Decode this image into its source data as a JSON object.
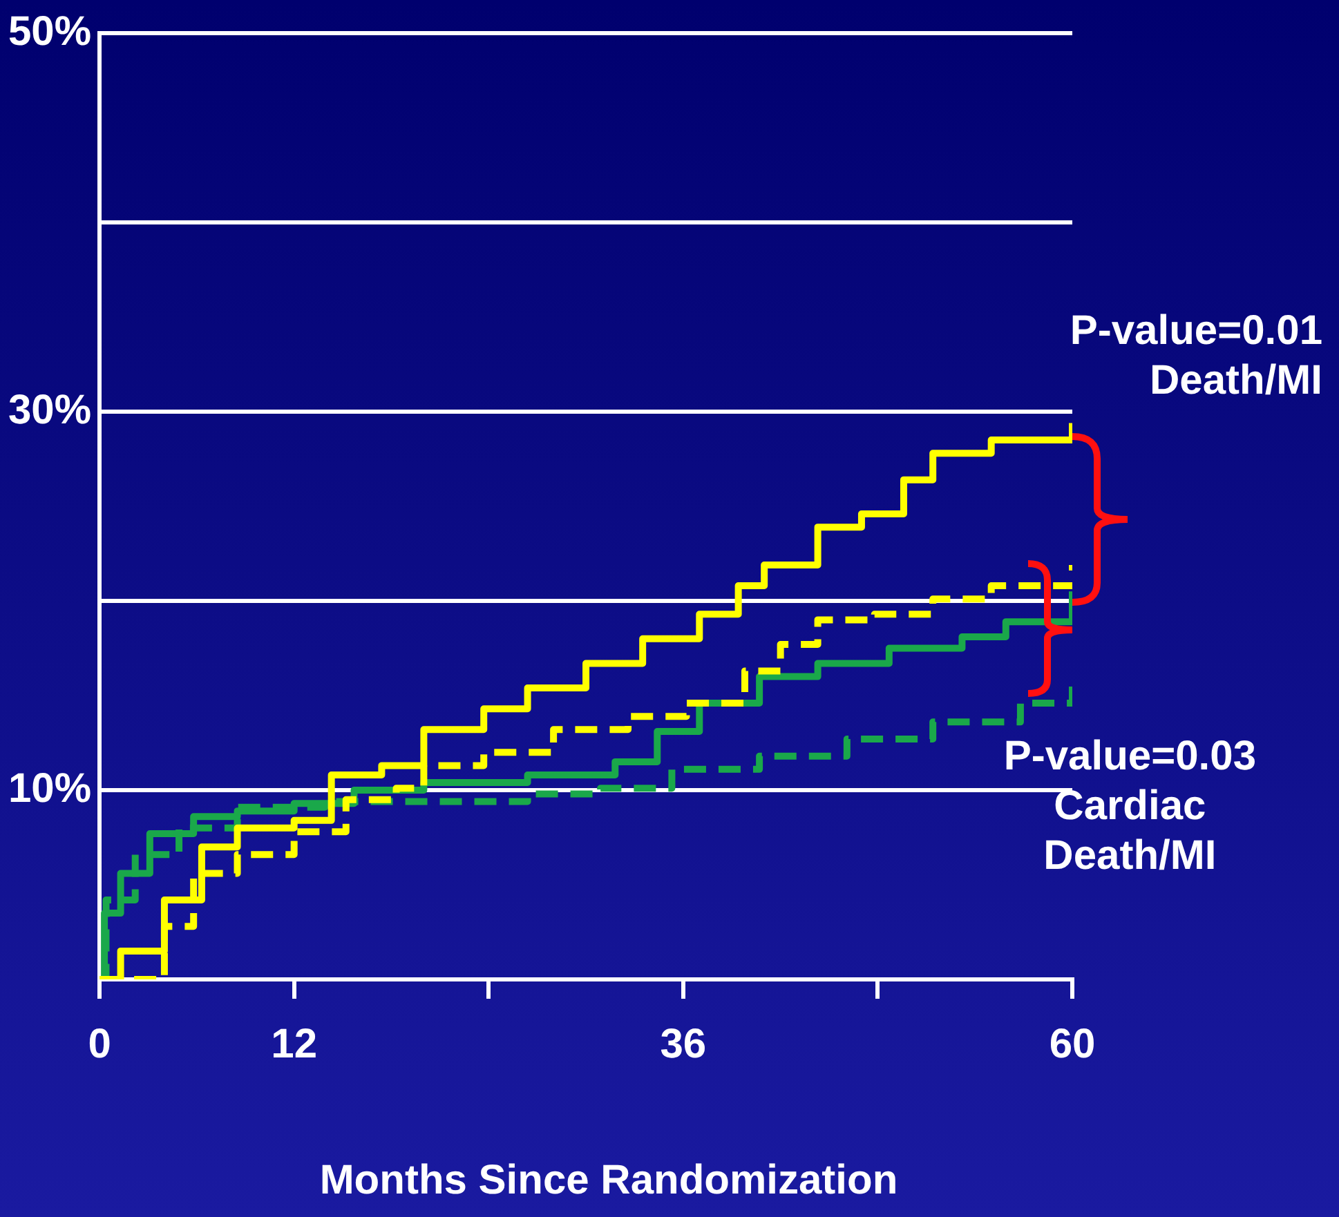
{
  "chart_data": {
    "type": "step",
    "xlabel": "Months Since Randomization",
    "xlim": [
      0,
      60
    ],
    "xticks": [
      0,
      12,
      {
        "value": 24,
        "label": null
      },
      36,
      {
        "value": 48,
        "label": null
      },
      60
    ],
    "ylim": [
      0,
      50
    ],
    "yticks": [
      {
        "value": 0,
        "label": null
      },
      {
        "value": 10,
        "label": "10%"
      },
      {
        "value": 20,
        "label": null
      },
      {
        "value": 30,
        "label": "30%"
      },
      {
        "value": 40,
        "label": null
      },
      {
        "value": 50,
        "label": "50%"
      }
    ],
    "grid": "y",
    "legend": false,
    "marker": "none",
    "annotations": [
      "P-value=0.01\nDeath/MI",
      {
        "text": "P-value=0.03\nCardiac\nDeath/MI",
        "x": 60,
        "y": 18.5
      }
    ],
    "series": [
      {
        "color": "#ffff00",
        "line_style": "solid",
        "x": [
          0,
          1.3,
          4,
          6.3,
          8.5,
          12,
          14.3,
          17.4,
          20,
          23.7,
          26.4,
          30,
          33.5,
          37,
          39.4,
          41,
          44.3,
          47,
          49.6,
          51.4,
          55,
          60
        ],
        "values": [
          0,
          1.5,
          4.2,
          7,
          8,
          8.4,
          10.8,
          11.3,
          13.2,
          14.3,
          15.4,
          16.7,
          18,
          19.3,
          20.8,
          21.9,
          23.9,
          24.6,
          26.4,
          27.8,
          28.5,
          29.4
        ]
      },
      {
        "color": "#ffff00",
        "line_style": "dashed",
        "x": [
          0,
          4,
          5.8,
          8.5,
          12,
          15.2,
          18.3,
          20,
          23.7,
          28,
          32.6,
          36.2,
          39.8,
          42,
          44.3,
          47.8,
          51.4,
          55,
          60
        ],
        "values": [
          0,
          2.8,
          5.6,
          6.6,
          7.8,
          9.5,
          10.1,
          11.3,
          12,
          13.2,
          13.9,
          14.6,
          16.3,
          17.7,
          19,
          19.3,
          20.1,
          20.8,
          21.9
        ]
      },
      {
        "color": "#1aa84a",
        "line_style": "solid",
        "x": [
          0,
          0.3,
          1.3,
          3.1,
          5.8,
          8.5,
          12,
          15.7,
          20,
          26.4,
          31.8,
          34.4,
          37,
          40.7,
          44.3,
          48.7,
          53.2,
          55.9,
          60
        ],
        "values": [
          0,
          3.5,
          5.6,
          7.7,
          8.6,
          8.9,
          9.3,
          10,
          10.4,
          10.8,
          11.5,
          13.1,
          14.6,
          16,
          16.7,
          17.5,
          18.1,
          18.9,
          20.5
        ]
      },
      {
        "color": "#1aa84a",
        "line_style": "dashed",
        "x": [
          0,
          0.4,
          2.2,
          4.9,
          8.5,
          13.9,
          20,
          26.4,
          30.9,
          35.3,
          40.7,
          46.1,
          51.4,
          56.8,
          60
        ],
        "values": [
          0,
          4.2,
          6.6,
          8,
          9.1,
          9.4,
          9.4,
          9.8,
          10.1,
          11.1,
          11.8,
          12.7,
          13.6,
          14.6,
          15.8
        ]
      }
    ]
  }
}
